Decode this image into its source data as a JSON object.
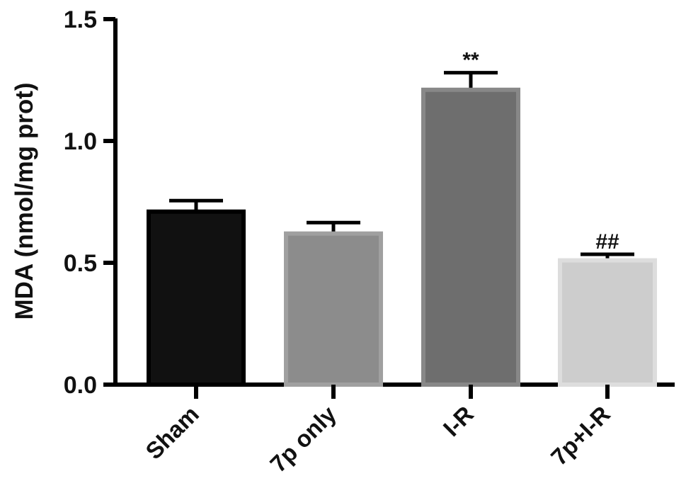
{
  "chart_data": {
    "type": "bar",
    "title": "",
    "xlabel": "",
    "ylabel": "MDA (nmol/mg prot)",
    "ylim": [
      0,
      1.5
    ],
    "yticks": [
      "0.0",
      "0.5",
      "1.0",
      "1.5"
    ],
    "categories": [
      "Sham",
      "7p only",
      "I-R",
      "7p+I-R"
    ],
    "values": [
      0.71,
      0.62,
      1.21,
      0.51
    ],
    "errors": [
      0.045,
      0.045,
      0.07,
      0.025
    ],
    "annotations": [
      "",
      "",
      "**",
      "##"
    ],
    "colors": [
      "#111111",
      "#8c8c8c",
      "#6e6e6e",
      "#cdcdcd"
    ],
    "edge_colors": [
      "#000000",
      "#a0a0a0",
      "#888888",
      "#dddddd"
    ],
    "grid": false,
    "legend": "none"
  }
}
